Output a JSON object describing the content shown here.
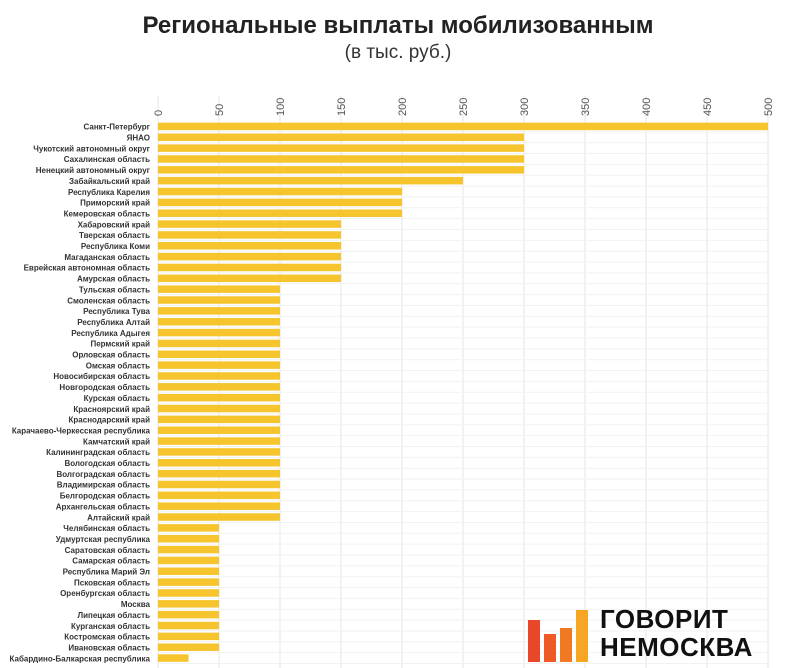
{
  "title": "Региональные выплаты мобилизованным",
  "subtitle": "(в тыс. руб.)",
  "logo": {
    "line1": "ГОВОРИТ",
    "line2": "НЕМОСКВА",
    "bar_colors": [
      "#e8472a",
      "#f07a22",
      "#f5a623"
    ]
  },
  "chart_data": {
    "type": "bar",
    "orientation": "horizontal",
    "title": "Региональные выплаты мобилизованным",
    "subtitle": "(в тыс. руб.)",
    "xlim": [
      0,
      500
    ],
    "xticks": [
      0,
      50,
      100,
      150,
      200,
      250,
      300,
      350,
      400,
      450,
      500
    ],
    "grid": true,
    "bar_color": "#f6c42d",
    "categories": [
      "Санкт-Петербург",
      "ЯНАО",
      "Чукотский автономный округ",
      "Сахалинская область",
      "Ненецкий автономный округ",
      "Забайкальский край",
      "Республика Карелия",
      "Приморский край",
      "Кемеровская область",
      "Хабаровский край",
      "Тверская область",
      "Республика Коми",
      "Магаданская область",
      "Еврейская автономная область",
      "Амурская область",
      "Тульская область",
      "Смоленская область",
      "Республика Тува",
      "Республика Алтай",
      "Республика Адыгея",
      "Пермский край",
      "Орловская область",
      "Омская область",
      "Новосибирская область",
      "Новгородская область",
      "Курская область",
      "Красноярский край",
      "Краснодарский край",
      "Карачаево-Черкесская республика",
      "Камчатский край",
      "Калининградская область",
      "Вологодская область",
      "Волгоградская область",
      "Владимирская область",
      "Белгородская область",
      "Архангельская область",
      "Алтайский край",
      "Челябинская область",
      "Удмуртская республика",
      "Саратовская область",
      "Самарская область",
      "Республика Марий Эл",
      "Псковская область",
      "Оренбургская область",
      "Москва",
      "Липецкая область",
      "Курганская область",
      "Костромская область",
      "Ивановская область",
      "Кабардино-Балкарская республика"
    ],
    "values": [
      500,
      300,
      300,
      300,
      300,
      250,
      200,
      200,
      200,
      150,
      150,
      150,
      150,
      150,
      150,
      100,
      100,
      100,
      100,
      100,
      100,
      100,
      100,
      100,
      100,
      100,
      100,
      100,
      100,
      100,
      100,
      100,
      100,
      100,
      100,
      100,
      100,
      50,
      50,
      50,
      50,
      50,
      50,
      50,
      50,
      50,
      50,
      50,
      50,
      25
    ]
  }
}
